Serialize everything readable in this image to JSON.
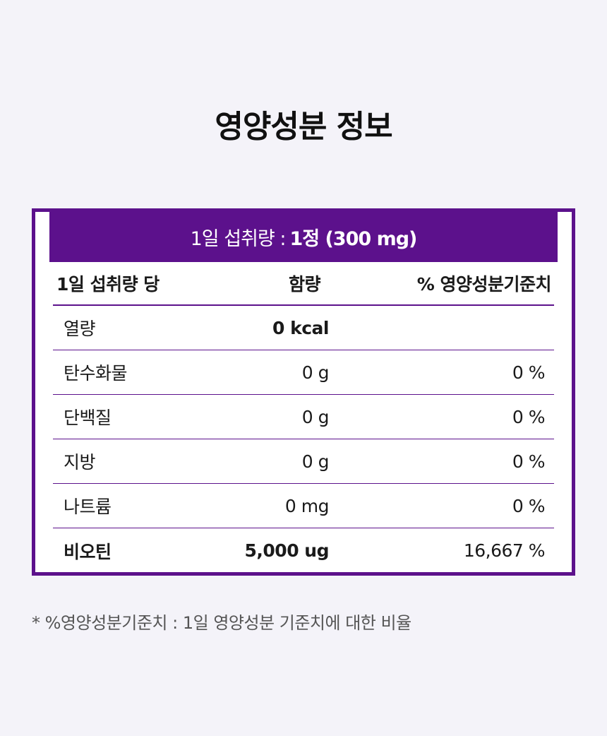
{
  "title": "영양성분 정보",
  "serving": {
    "label": "1일 섭취량 :",
    "value": "1정 (300 mg)"
  },
  "table": {
    "headers": {
      "name": "1일 섭취량 당",
      "amount": "함량",
      "daily_value": "% 영양성분기준치"
    },
    "rows": [
      {
        "name": "열량",
        "amount": "0 kcal",
        "daily_value": ""
      },
      {
        "name": "탄수화물",
        "amount": "0 g",
        "daily_value": "0 %"
      },
      {
        "name": "단백질",
        "amount": "0 g",
        "daily_value": "0 %"
      },
      {
        "name": "지방",
        "amount": "0 g",
        "daily_value": "0 %"
      },
      {
        "name": "나트륨",
        "amount": "0 mg",
        "daily_value": "0 %"
      },
      {
        "name": "비오틴",
        "amount": "5,000 ug",
        "daily_value": "16,667 %"
      }
    ]
  },
  "footnote": "* %영양성분기준치 : 1일 영양성분 기준치에 대한 비율",
  "colors": {
    "accent": "#5c118c",
    "background": "#f4f3f9"
  }
}
